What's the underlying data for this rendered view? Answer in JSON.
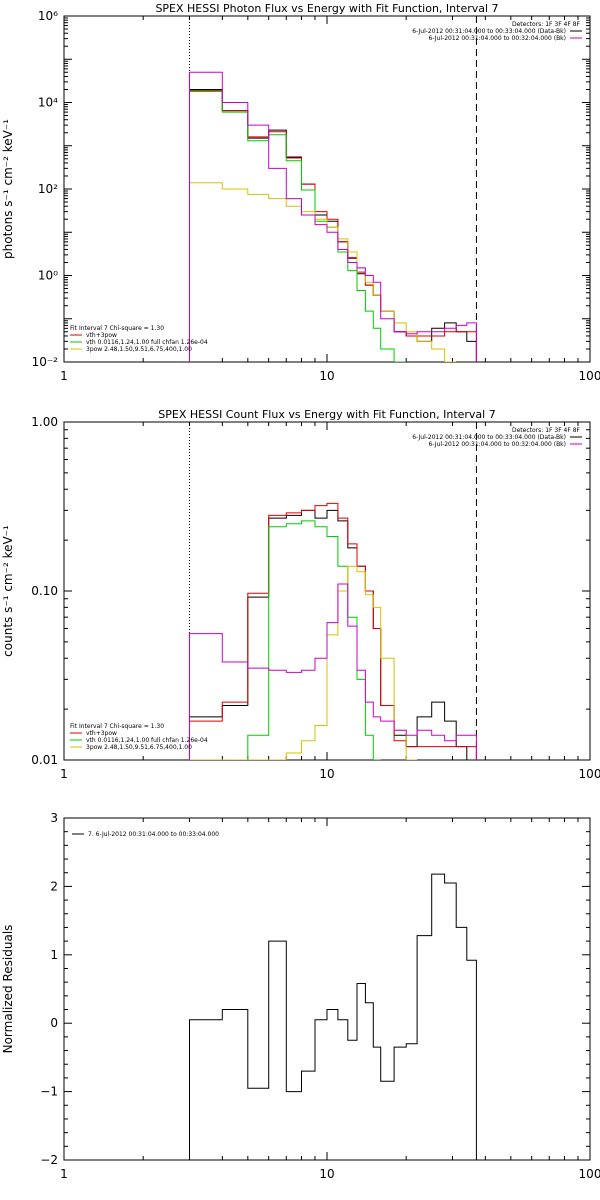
{
  "colors": {
    "black": "#000000",
    "red": "#dd0000",
    "green": "#00cc00",
    "yellow": "#d8c000",
    "magenta": "#cc00cc"
  },
  "chart_data": [
    {
      "type": "line",
      "title": "SPEX HESSI Photon Flux vs Energy with Fit Function, Interval 7",
      "ylabel": "photons s⁻¹ cm⁻² keV⁻¹",
      "xscale": "log",
      "yscale": "log",
      "xlim": [
        1,
        100
      ],
      "ylim": [
        0.01,
        1000000
      ],
      "xticks": [
        {
          "value": 1,
          "label": "1"
        },
        {
          "value": 10,
          "label": "10"
        },
        {
          "value": 100,
          "label": "100"
        }
      ],
      "yticks": [
        {
          "value": 0.01,
          "label": "10⁻²"
        },
        {
          "value": 1,
          "label": "10⁰"
        },
        {
          "value": 100,
          "label": "10²"
        },
        {
          "value": 10000,
          "label": "10⁴"
        },
        {
          "value": 1000000,
          "label": "10⁶"
        }
      ],
      "vlines": [
        {
          "x": 3,
          "style": "dotted"
        },
        {
          "x": 37,
          "style": "dashed"
        }
      ],
      "legend_top_right": {
        "detectors": "Detectors: 1F 3F 4F 8F",
        "entries": [
          {
            "text": "6-Jul-2012 00:31:04.000 to 00:33:04.000 (Data-Bk)",
            "color": "black"
          },
          {
            "text": "6-Jul-2012 00:31:04.000 to 00:32:04.000 (Bk)",
            "color": "magenta"
          }
        ]
      },
      "legend_bottom_left": {
        "header": "Fit Interval 7   Chi-square = 1.30",
        "entries": [
          {
            "text": "vth+3pow",
            "color": "red"
          },
          {
            "text": "vth 0.0116,1.24,1.00  full chfan 1.26e-04",
            "color": "green"
          },
          {
            "text": "3pow 2.48,1.50,9.51,6.75,400,1.00",
            "color": "yellow"
          }
        ]
      },
      "edges": [
        3,
        4,
        5,
        6,
        7,
        8,
        9,
        10,
        11,
        12,
        13,
        14,
        15,
        16,
        18,
        20,
        22,
        25,
        28,
        31,
        34,
        37
      ],
      "series": [
        {
          "color": "black",
          "values": [
            20000,
            6500,
            1500,
            2300,
            550,
            130,
            25,
            18,
            6,
            2.5,
            1.1,
            0.6,
            0.35,
            0.15,
            0.05,
            0.04,
            0.03,
            0.06,
            0.08,
            0.05,
            0.03
          ]
        },
        {
          "color": "red",
          "values": [
            19000,
            6500,
            1600,
            2100,
            520,
            130,
            30,
            20,
            6,
            2.6,
            1.2,
            0.6,
            0.35,
            0.15,
            0.05,
            0.04,
            0.04,
            0.04,
            0.05,
            0.05,
            0.05
          ]
        },
        {
          "color": "green",
          "values": [
            18000,
            6000,
            1300,
            1800,
            450,
            95,
            18,
            13,
            3.5,
            1.3,
            0.45,
            0.15,
            0.06,
            0.02,
            0.01
          ]
        },
        {
          "color": "yellow",
          "values": [
            140,
            100,
            75,
            60,
            40,
            30,
            20,
            13,
            7,
            3.5,
            1.5,
            0.7,
            0.35,
            0.15,
            0.08,
            0.05,
            0.03,
            0.02,
            0.01
          ]
        },
        {
          "color": "magenta",
          "values": [
            50000,
            10000,
            3000,
            300,
            60,
            25,
            15,
            10,
            4,
            2,
            1.5,
            1,
            0.7,
            0.1,
            0.05,
            0.045,
            0.05,
            0.05,
            0.06,
            0.07,
            0.08
          ]
        }
      ]
    },
    {
      "type": "line",
      "title": "SPEX HESSI Count Flux vs Energy with Fit Function, Interval 7",
      "ylabel": "counts s⁻¹ cm⁻² keV⁻¹",
      "xscale": "log",
      "yscale": "log",
      "xlim": [
        1,
        100
      ],
      "ylim": [
        0.01,
        1.0
      ],
      "xticks": [
        {
          "value": 1,
          "label": "1"
        },
        {
          "value": 10,
          "label": "10"
        },
        {
          "value": 100,
          "label": "100"
        }
      ],
      "yticks": [
        {
          "value": 0.01,
          "label": "0.01"
        },
        {
          "value": 0.1,
          "label": "0.10"
        },
        {
          "value": 1.0,
          "label": "1.00"
        }
      ],
      "vlines": [
        {
          "x": 3,
          "style": "dotted"
        },
        {
          "x": 37,
          "style": "dashed"
        }
      ],
      "legend_top_right": {
        "detectors": "Detectors: 1F 3F 4F 8F",
        "entries": [
          {
            "text": "6-Jul-2012 00:31:04.000 to 00:33:04.000 (Data-Bk)",
            "color": "black"
          },
          {
            "text": "6-Jul-2012 00:31:04.000 to 00:32:04.000 (Bk)",
            "color": "magenta"
          }
        ]
      },
      "legend_bottom_left": {
        "header": "Fit Interval 7   Chi-square = 1.30",
        "entries": [
          {
            "text": "vth+3pow",
            "color": "red"
          },
          {
            "text": "vth 0.0116,1.24,1.00  full chfan 1.26e-04",
            "color": "green"
          },
          {
            "text": "3pow 2.48,1.50,9.51,6.75,400,1.00",
            "color": "yellow"
          }
        ]
      },
      "edges": [
        3,
        4,
        5,
        6,
        7,
        8,
        9,
        10,
        11,
        12,
        13,
        14,
        15,
        16,
        18,
        20,
        22,
        25,
        28,
        31,
        34,
        37
      ],
      "series": [
        {
          "color": "black",
          "values": [
            0.018,
            0.021,
            0.092,
            0.27,
            0.28,
            0.3,
            0.27,
            0.3,
            0.26,
            0.18,
            0.14,
            0.1,
            0.06,
            0.021,
            0.014,
            0.012,
            0.018,
            0.022,
            0.017,
            0.012,
            0.01
          ]
        },
        {
          "color": "red",
          "values": [
            0.017,
            0.022,
            0.097,
            0.28,
            0.29,
            0.3,
            0.32,
            0.33,
            0.27,
            0.19,
            0.14,
            0.1,
            0.06,
            0.021,
            0.013,
            0.012,
            0.012,
            0.012,
            0.012,
            0.012,
            0.012
          ]
        },
        {
          "color": "green",
          "values": [
            0.01,
            0.01,
            0.014,
            0.24,
            0.25,
            0.26,
            0.24,
            0.21,
            0.14,
            0.07,
            0.03,
            0.014,
            0.01
          ]
        },
        {
          "color": "yellow",
          "values": [
            0.01,
            0.01,
            0.01,
            0.01,
            0.011,
            0.013,
            0.016,
            0.055,
            0.1,
            0.14,
            0.13,
            0.095,
            0.08,
            0.04,
            0.015,
            0.01
          ]
        },
        {
          "color": "magenta",
          "values": [
            0.056,
            0.038,
            0.035,
            0.034,
            0.033,
            0.034,
            0.04,
            0.065,
            0.11,
            0.062,
            0.034,
            0.022,
            0.018,
            0.017,
            0.015,
            0.014,
            0.015,
            0.014,
            0.013,
            0.014,
            0.014
          ]
        }
      ]
    },
    {
      "type": "line",
      "title": "",
      "ylabel": "Normalized Residuals",
      "xscale": "log",
      "yscale": "linear",
      "xlim": [
        1,
        100
      ],
      "ylim": [
        -2,
        3
      ],
      "xticks": [
        {
          "value": 1,
          "label": "1"
        },
        {
          "value": 10,
          "label": "10"
        },
        {
          "value": 100,
          "label": "100"
        }
      ],
      "yticks": [
        {
          "value": -2,
          "label": "−2"
        },
        {
          "value": -1,
          "label": "−1"
        },
        {
          "value": 0,
          "label": "0"
        },
        {
          "value": 1,
          "label": "1"
        },
        {
          "value": 2,
          "label": "2"
        },
        {
          "value": 3,
          "label": "3"
        }
      ],
      "legend_top_left": {
        "entries": [
          {
            "text": "7.  6-Jul-2012 00:31:04.000 to 00:33:04.000",
            "color": "black"
          }
        ]
      },
      "edges": [
        3,
        4,
        5,
        6,
        7,
        8,
        9,
        10,
        11,
        12,
        13,
        14,
        15,
        16,
        18,
        20,
        22,
        25,
        28,
        31,
        34,
        37
      ],
      "series": [
        {
          "color": "black",
          "values": [
            0.05,
            0.2,
            -0.95,
            1.2,
            -1.0,
            -0.7,
            0.05,
            0.2,
            0.05,
            -0.25,
            0.58,
            0.3,
            -0.35,
            -0.85,
            -0.35,
            -0.3,
            1.28,
            2.18,
            2.05,
            1.4,
            0.92
          ]
        }
      ]
    }
  ]
}
